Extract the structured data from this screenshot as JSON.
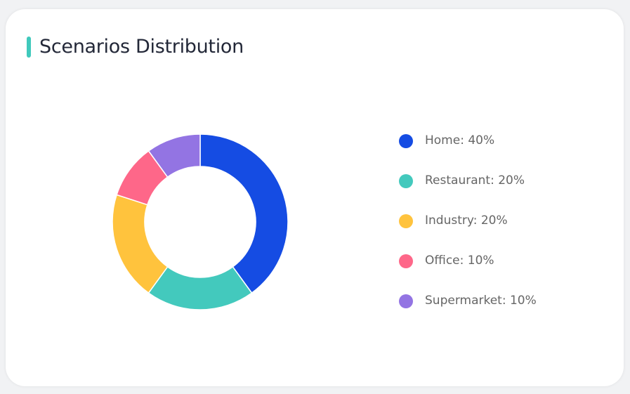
{
  "title": "Scenarios Distribution",
  "accent_color": "#40c9bc",
  "chart_data": {
    "type": "pie",
    "variant": "donut",
    "categories": [
      "Home",
      "Restaurant",
      "Industry",
      "Office",
      "Supermarket"
    ],
    "values": [
      40,
      20,
      20,
      10,
      10
    ],
    "unit": "%",
    "colors": [
      "#154ce3",
      "#43c9bd",
      "#ffc33d",
      "#fe6789",
      "#9374e3"
    ],
    "legend": {
      "placement": "right",
      "labels": [
        "Home: 40%",
        "Restaurant: 20%",
        "Industry: 20%",
        "Office: 10%",
        "Supermarket: 10%"
      ]
    }
  }
}
